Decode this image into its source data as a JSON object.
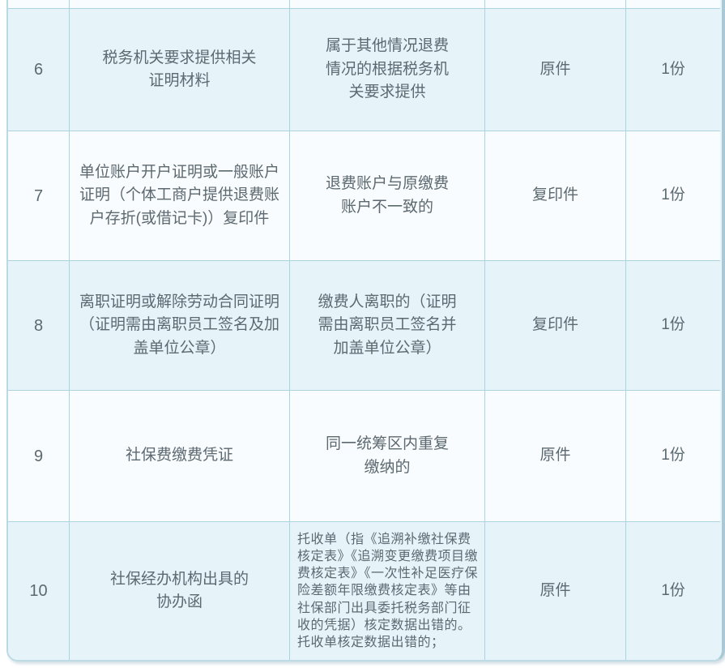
{
  "table": {
    "rows": [
      {
        "seq": "6",
        "material": "税务机关要求提供相关\n证明材料",
        "condition": "属于其他情况退费\n情况的根据税务机\n关要求提供",
        "form": "原件",
        "quantity": "1份"
      },
      {
        "seq": "7",
        "material": "单位账户开户证明或一般账户\n证明（个体工商户提供退费账\n户存折(或借记卡)）复印件",
        "condition": "退费账户与原缴费\n账户不一致的",
        "form": "复印件",
        "quantity": "1份"
      },
      {
        "seq": "8",
        "material": "离职证明或解除劳动合同证明\n（证明需由离职员工签名及加\n盖单位公章）",
        "condition": "缴费人离职的（证明\n需由离职员工签名并\n加盖单位公章）",
        "form": "复印件",
        "quantity": "1份"
      },
      {
        "seq": "9",
        "material": "社保费缴费凭证",
        "condition": "同一统筹区内重复\n缴纳的",
        "form": "原件",
        "quantity": "1份"
      },
      {
        "seq": "10",
        "material": "社保经办机构出具的\n协办函",
        "condition": "托收单（指《追溯补缴社保费核定表》《追溯变更缴费项目缴费核定表》《一次性补足医疗保险差额年限缴费核定表》等由社保部门出具委托税务部门征收的凭据）核定数据出错的。托收单核定数据出错的；",
        "form": "原件",
        "quantity": "1份"
      }
    ]
  },
  "colors": {
    "row_blue": "#e6f4fa",
    "row_white": "#f8fcfe",
    "grid_line": "#abd3e0",
    "text": "#5d6970",
    "right_edge": "#a9c9d6"
  }
}
